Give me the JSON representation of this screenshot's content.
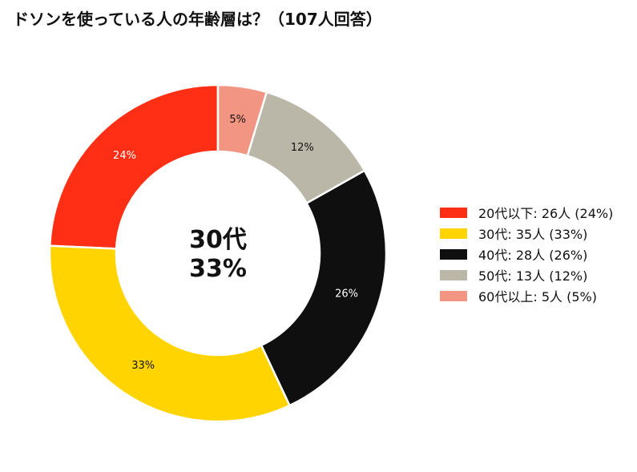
{
  "chart_data": {
    "type": "pie",
    "title": "ドソンを使っている人の年齢層は？（107人回答）",
    "categories": [
      "20代以下",
      "30代",
      "40代",
      "50代",
      "60代以上"
    ],
    "counts": [
      26,
      35,
      28,
      13,
      5
    ],
    "percent_labels": [
      "24%",
      "33%",
      "26%",
      "12%",
      "5%"
    ],
    "colors": [
      "#ff2f15",
      "#ffd400",
      "#0f0f0f",
      "#bbb7a8",
      "#f29582"
    ],
    "label_colors": [
      "#ffffff",
      "#111111",
      "#ffffff",
      "#111111",
      "#111111"
    ],
    "legend_labels": [
      "20代以下:  26人 (24%)",
      "30代:  35人 (33%)",
      "40代:  28人 (26%)",
      "50代:  13人 (12%)",
      "60代以上:  5人 (5%)"
    ],
    "center": {
      "line1": "30代",
      "line2": "33%"
    },
    "legend_position": "right",
    "donut": true,
    "start_angle": "top",
    "direction": "counterclockwise"
  }
}
